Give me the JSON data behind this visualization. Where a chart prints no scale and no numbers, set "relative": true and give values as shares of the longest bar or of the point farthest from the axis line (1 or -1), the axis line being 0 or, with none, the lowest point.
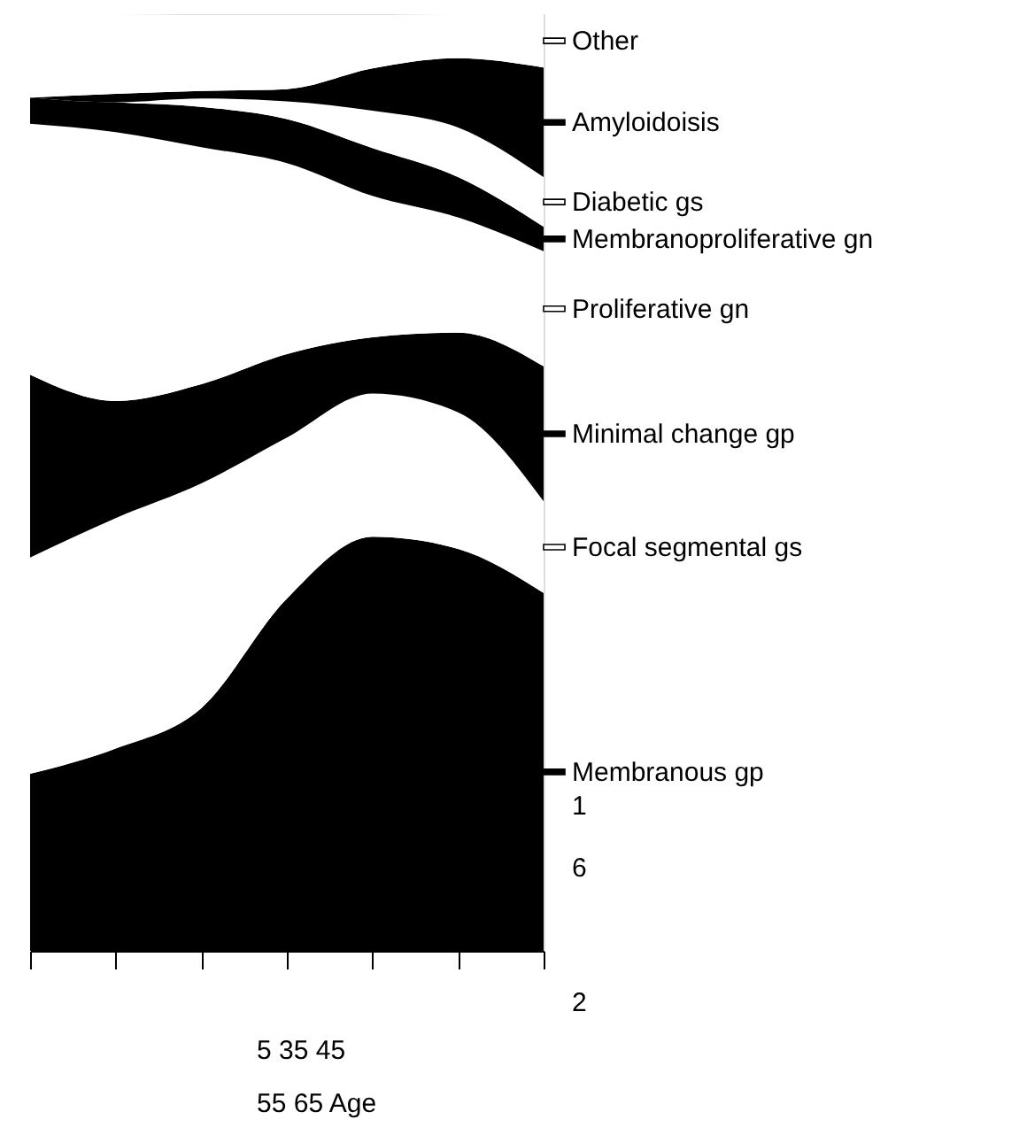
{
  "chart_data": {
    "type": "area",
    "stacked": true,
    "relative": true,
    "tick_labels": false,
    "grid": false,
    "legend": "right",
    "categories": [
      null,
      null,
      null,
      null,
      null,
      null,
      null
    ],
    "series": [
      {
        "name": "Membranous gp",
        "color": "#000000",
        "values": [
          0.189,
          0.216,
          0.259,
          0.376,
          0.442,
          0.429,
          0.382
        ]
      },
      {
        "name": "Focal segmental gs",
        "color": "#ffffff",
        "values": [
          0.231,
          0.246,
          0.24,
          0.172,
          0.153,
          0.146,
          0.098
        ]
      },
      {
        "name": "Minimal change gp",
        "color": "#000000",
        "values": [
          0.195,
          0.125,
          0.106,
          0.089,
          0.06,
          0.085,
          0.144
        ]
      },
      {
        "name": "Proliferative gn",
        "color": "#ffffff",
        "values": [
          0.268,
          0.287,
          0.253,
          0.204,
          0.151,
          0.123,
          0.123
        ]
      },
      {
        "name": "Membranoproliferative gn",
        "color": "#000000",
        "values": [
          0.028,
          0.032,
          0.043,
          0.047,
          0.051,
          0.043,
          0.026
        ]
      },
      {
        "name": "Diabetic gs",
        "color": "#ffffff",
        "values": [
          0,
          0,
          0.009,
          0.019,
          0.04,
          0.053,
          0.053
        ]
      },
      {
        "name": "Amyloidoisis",
        "color": "#000000",
        "values": [
          0,
          0.009,
          0.008,
          0.013,
          0.045,
          0.074,
          0.117
        ]
      },
      {
        "name": "Other",
        "color": "#ffffff",
        "values": [
          0.089,
          0.085,
          0.081,
          0.079,
          0.057,
          0.047,
          0.057
        ]
      }
    ],
    "annotations": [
      "1",
      "6",
      "2",
      "5 35 45",
      "55 65 Age"
    ]
  }
}
